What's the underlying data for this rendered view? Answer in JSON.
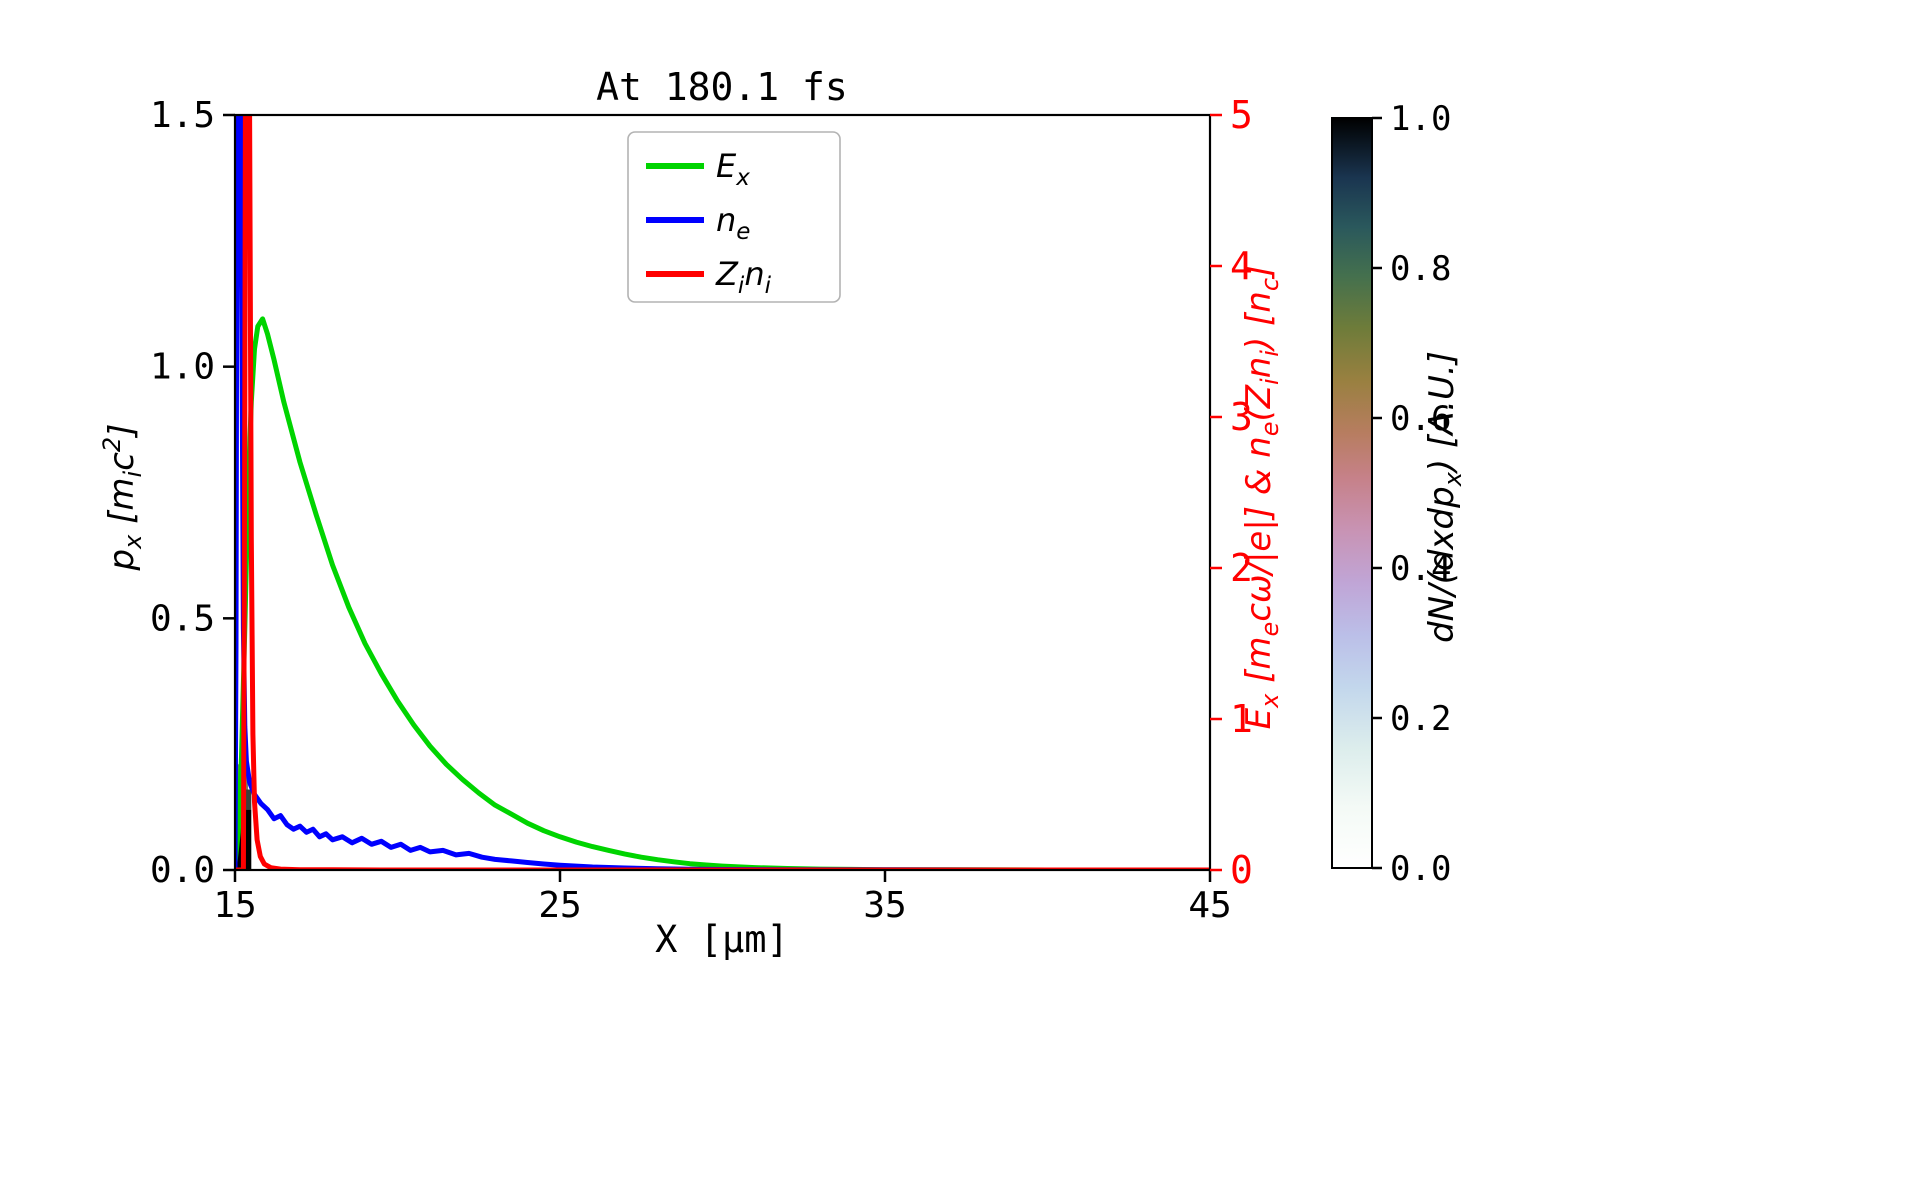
{
  "chart_data": {
    "type": "line",
    "title": "At 180.1 fs",
    "xlabel": "X [μm]",
    "ylabel_left": "p_{x} [m_{i}c^{2}]",
    "ylabel_right": "E_{x} [m_{e}cω/|e|] & n_{e}(Z_{i}n_{i}) [n_{c}]",
    "xlim": [
      15,
      45
    ],
    "ylim_left": [
      0,
      1.5
    ],
    "ylim_right": [
      0,
      5
    ],
    "x_ticks": [
      "15",
      "25",
      "35",
      "45"
    ],
    "y_left_ticks": [
      "0.0",
      "0.5",
      "1.0",
      "1.5"
    ],
    "y_right_ticks": [
      "0",
      "1",
      "2",
      "3",
      "4",
      "5"
    ],
    "axis_colors": {
      "left": "#000000",
      "right": "#ff0000"
    },
    "grid": false,
    "legend_position": "upper center",
    "series": [
      {
        "name": "E_{x}",
        "color": "#00d400",
        "axis": "right",
        "points": [
          [
            15.0,
            0.05
          ],
          [
            15.1,
            0.25
          ],
          [
            15.2,
            0.75
          ],
          [
            15.3,
            1.6
          ],
          [
            15.4,
            2.5
          ],
          [
            15.5,
            3.1
          ],
          [
            15.6,
            3.45
          ],
          [
            15.7,
            3.6
          ],
          [
            15.85,
            3.65
          ],
          [
            16.0,
            3.55
          ],
          [
            16.2,
            3.38
          ],
          [
            16.5,
            3.1
          ],
          [
            17.0,
            2.7
          ],
          [
            17.5,
            2.35
          ],
          [
            18.0,
            2.02
          ],
          [
            18.5,
            1.74
          ],
          [
            19.0,
            1.5
          ],
          [
            19.5,
            1.3
          ],
          [
            20.0,
            1.12
          ],
          [
            20.5,
            0.96
          ],
          [
            21.0,
            0.82
          ],
          [
            21.5,
            0.7
          ],
          [
            22.0,
            0.6
          ],
          [
            22.5,
            0.51
          ],
          [
            23.0,
            0.43
          ],
          [
            23.5,
            0.37
          ],
          [
            24.0,
            0.31
          ],
          [
            24.5,
            0.26
          ],
          [
            25.0,
            0.22
          ],
          [
            25.5,
            0.185
          ],
          [
            26.0,
            0.155
          ],
          [
            26.5,
            0.13
          ],
          [
            27.0,
            0.105
          ],
          [
            27.5,
            0.085
          ],
          [
            28.0,
            0.068
          ],
          [
            28.5,
            0.054
          ],
          [
            29.0,
            0.042
          ],
          [
            29.5,
            0.033
          ],
          [
            30.0,
            0.026
          ],
          [
            31.0,
            0.016
          ],
          [
            32.0,
            0.01
          ],
          [
            33.0,
            0.006
          ],
          [
            34.0,
            0.004
          ],
          [
            35.0,
            0.002
          ],
          [
            37.0,
            0.001
          ],
          [
            40.0,
            0.0
          ],
          [
            45.0,
            0.0
          ]
        ]
      },
      {
        "name": "n_{e}",
        "color": "#0000ff",
        "axis": "right",
        "points": [
          [
            15.0,
            0.0
          ],
          [
            15.03,
            1.5
          ],
          [
            15.06,
            5.0
          ],
          [
            15.18,
            5.0
          ],
          [
            15.22,
            3.2
          ],
          [
            15.26,
            1.6
          ],
          [
            15.3,
            0.95
          ],
          [
            15.35,
            0.72
          ],
          [
            15.45,
            0.58
          ],
          [
            15.6,
            0.5
          ],
          [
            15.8,
            0.44
          ],
          [
            16.0,
            0.4
          ],
          [
            16.2,
            0.34
          ],
          [
            16.4,
            0.36
          ],
          [
            16.6,
            0.3
          ],
          [
            16.8,
            0.27
          ],
          [
            17.0,
            0.29
          ],
          [
            17.2,
            0.25
          ],
          [
            17.4,
            0.27
          ],
          [
            17.6,
            0.22
          ],
          [
            17.8,
            0.24
          ],
          [
            18.0,
            0.2
          ],
          [
            18.3,
            0.22
          ],
          [
            18.6,
            0.18
          ],
          [
            18.9,
            0.21
          ],
          [
            19.2,
            0.17
          ],
          [
            19.5,
            0.19
          ],
          [
            19.8,
            0.15
          ],
          [
            20.1,
            0.17
          ],
          [
            20.4,
            0.13
          ],
          [
            20.7,
            0.15
          ],
          [
            21.0,
            0.12
          ],
          [
            21.4,
            0.13
          ],
          [
            21.8,
            0.1
          ],
          [
            22.2,
            0.11
          ],
          [
            22.6,
            0.085
          ],
          [
            23.0,
            0.07
          ],
          [
            23.5,
            0.06
          ],
          [
            24.0,
            0.05
          ],
          [
            24.5,
            0.04
          ],
          [
            25.0,
            0.032
          ],
          [
            25.5,
            0.026
          ],
          [
            26.0,
            0.02
          ],
          [
            27.0,
            0.013
          ],
          [
            28.0,
            0.008
          ],
          [
            29.0,
            0.005
          ],
          [
            30.0,
            0.003
          ],
          [
            32.0,
            0.002
          ],
          [
            35.0,
            0.001
          ],
          [
            40.0,
            0.0
          ],
          [
            45.0,
            0.0
          ]
        ]
      },
      {
        "name": "Z_{i}n_{i}",
        "color": "#ff0000",
        "axis": "right",
        "points": [
          [
            15.0,
            0.0
          ],
          [
            15.26,
            0.0
          ],
          [
            15.3,
            3.0
          ],
          [
            15.32,
            5.0
          ],
          [
            15.45,
            5.0
          ],
          [
            15.5,
            2.2
          ],
          [
            15.55,
            0.9
          ],
          [
            15.6,
            0.45
          ],
          [
            15.68,
            0.2
          ],
          [
            15.78,
            0.09
          ],
          [
            15.9,
            0.04
          ],
          [
            16.1,
            0.015
          ],
          [
            16.4,
            0.006
          ],
          [
            17.0,
            0.002
          ],
          [
            18.0,
            0.001
          ],
          [
            20.0,
            0.0
          ],
          [
            45.0,
            0.0
          ]
        ]
      }
    ],
    "phase_space": {
      "label": "dN/(dxdp_{x}) [A.U.]",
      "colorbar_ticks": [
        "0.0",
        "0.2",
        "0.4",
        "0.6",
        "0.8",
        "1.0"
      ],
      "colorbar_range": [
        0.0,
        1.0
      ],
      "gradient": [
        [
          0.0,
          "#ffffff"
        ],
        [
          0.08,
          "#f4faf6"
        ],
        [
          0.16,
          "#dcedec"
        ],
        [
          0.24,
          "#c3d7ec"
        ],
        [
          0.31,
          "#bbbfe8"
        ],
        [
          0.38,
          "#c0a5d6"
        ],
        [
          0.45,
          "#c893b4"
        ],
        [
          0.52,
          "#c68189"
        ],
        [
          0.58,
          "#b77d60"
        ],
        [
          0.65,
          "#998040"
        ],
        [
          0.72,
          "#6e7c3a"
        ],
        [
          0.79,
          "#44704e"
        ],
        [
          0.855,
          "#2a585c"
        ],
        [
          0.92,
          "#1a3550"
        ],
        [
          1.0,
          "#000000"
        ]
      ],
      "blocks": [
        {
          "x0": 15.0,
          "x1": 15.5,
          "p0": 0.0,
          "p1": 0.12,
          "color": "#000000",
          "opacity": 1
        },
        {
          "x0": 15.0,
          "x1": 15.5,
          "p0": 0.12,
          "p1": 0.16,
          "color": "#3b423b",
          "opacity": 1
        },
        {
          "x0": 15.05,
          "x1": 15.4,
          "p0": 0.16,
          "p1": 0.21,
          "color": "#6b7750",
          "opacity": 0.9
        }
      ]
    }
  }
}
